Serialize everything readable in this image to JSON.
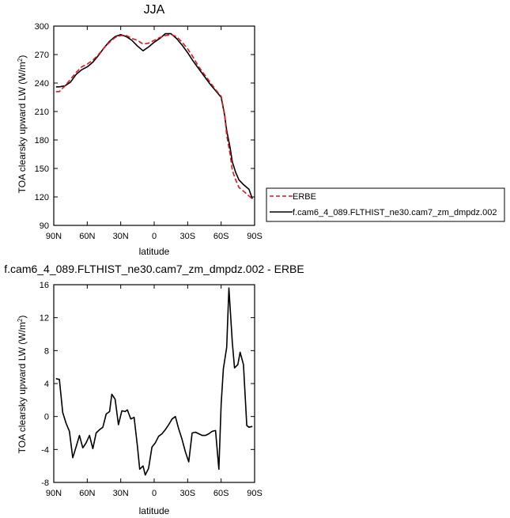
{
  "chart_data": [
    {
      "type": "line",
      "title": "JJA",
      "xlabel": "latitude",
      "ylabel": "TOA clearsky upward LW (W/m²)",
      "xlim": [
        -90,
        90
      ],
      "ylim": [
        90,
        300
      ],
      "xticks": [
        -90,
        -60,
        -30,
        0,
        30,
        60,
        90
      ],
      "xticklabels": [
        "90N",
        "60N",
        "30N",
        "0",
        "30S",
        "60S",
        "90S"
      ],
      "yticks": [
        90,
        120,
        150,
        180,
        210,
        240,
        270,
        300
      ],
      "yticklabels": [
        "90",
        "120",
        "150",
        "180",
        "210",
        "240",
        "270",
        "300"
      ],
      "grid": false,
      "legend_position": "right",
      "series": [
        {
          "name": "ERBE",
          "color": "#e8111d",
          "dash": "dashed",
          "x": [
            -88,
            -85,
            -80,
            -75,
            -70,
            -65,
            -60,
            -55,
            -50,
            -45,
            -40,
            -35,
            -30,
            -25,
            -20,
            -15,
            -10,
            -5,
            0,
            5,
            10,
            15,
            20,
            25,
            30,
            35,
            40,
            45,
            50,
            55,
            60,
            63,
            65,
            68,
            70,
            73,
            76,
            80,
            85,
            88
          ],
          "y": [
            231,
            231,
            237,
            244,
            251,
            257,
            260,
            264,
            270,
            277,
            283,
            288,
            290,
            290,
            287,
            285,
            281,
            282,
            285,
            288,
            290,
            291,
            289,
            283,
            276,
            267,
            257,
            249,
            241,
            233,
            226,
            208,
            185,
            165,
            148,
            138,
            130,
            126,
            121,
            118
          ]
        },
        {
          "name": "f.cam6_4_089.FLTHIST_ne30.cam7_zm_dmpdz.002",
          "color": "#000000",
          "dash": "solid",
          "x": [
            -88,
            -85,
            -80,
            -75,
            -70,
            -65,
            -60,
            -55,
            -50,
            -45,
            -40,
            -35,
            -30,
            -25,
            -20,
            -15,
            -10,
            -5,
            0,
            5,
            10,
            15,
            20,
            25,
            30,
            35,
            40,
            45,
            50,
            55,
            60,
            63,
            65,
            68,
            70,
            73,
            76,
            80,
            85,
            88
          ],
          "y": [
            236,
            236,
            237,
            241,
            249,
            254,
            257,
            262,
            269,
            277,
            284,
            289,
            291,
            289,
            285,
            279,
            274,
            278,
            283,
            287,
            292,
            292,
            287,
            280,
            272,
            263,
            255,
            247,
            239,
            232,
            225,
            207,
            190,
            172,
            157,
            146,
            138,
            133,
            128,
            118
          ]
        }
      ]
    },
    {
      "type": "line",
      "title": "f.cam6_4_089.FLTHIST_ne30.cam7_zm_dmpdz.002 - ERBE",
      "xlabel": "latitude",
      "ylabel": "TOA clearsky upward LW (W/m²)",
      "xlim": [
        -90,
        90
      ],
      "ylim": [
        -8,
        16
      ],
      "xticks": [
        -90,
        -60,
        -30,
        0,
        30,
        60,
        90
      ],
      "xticklabels": [
        "90N",
        "60N",
        "30N",
        "0",
        "30S",
        "60S",
        "90S"
      ],
      "yticks": [
        -8,
        -4,
        0,
        4,
        8,
        12,
        16
      ],
      "yticklabels": [
        "-8",
        "-4",
        "0",
        "4",
        "8",
        "12",
        "16"
      ],
      "grid": false,
      "series": [
        {
          "color": "#000000",
          "dash": "solid",
          "x": [
            -88,
            -85,
            -82,
            -79,
            -76,
            -73,
            -70,
            -67,
            -64,
            -61,
            -58,
            -55,
            -52,
            -49,
            -46,
            -43,
            -40,
            -38,
            -35,
            -32,
            -29,
            -26,
            -24,
            -21,
            -18,
            -15,
            -13,
            -10,
            -8,
            -5,
            -2,
            1,
            4,
            7,
            10,
            13,
            16,
            19,
            22,
            25,
            28,
            31,
            34,
            37,
            40,
            43,
            46,
            49,
            52,
            55,
            58,
            60,
            62,
            65,
            67,
            70,
            72,
            75,
            77,
            80,
            83,
            85,
            88
          ],
          "y": [
            4.6,
            4.5,
            0.5,
            -0.8,
            -1.8,
            -5.0,
            -3.7,
            -2.3,
            -3.8,
            -3.2,
            -2.3,
            -3.9,
            -2.0,
            -1.6,
            -1.3,
            0.3,
            0.6,
            2.7,
            2.1,
            -1.0,
            0.7,
            0.6,
            0.8,
            -0.3,
            -0.1,
            -3.6,
            -6.4,
            -6.0,
            -7.1,
            -6.3,
            -3.7,
            -3.2,
            -2.4,
            -2.1,
            -1.6,
            -1.0,
            -0.3,
            0.0,
            -1.5,
            -2.8,
            -4.3,
            -5.5,
            -2.0,
            -1.9,
            -2.1,
            -2.3,
            -2.3,
            -2.1,
            -1.8,
            -1.7,
            -6.4,
            1.5,
            5.8,
            8.4,
            15.6,
            9.0,
            5.9,
            6.3,
            7.8,
            6.3,
            -1.1,
            -1.3,
            -1.2
          ]
        }
      ]
    }
  ]
}
